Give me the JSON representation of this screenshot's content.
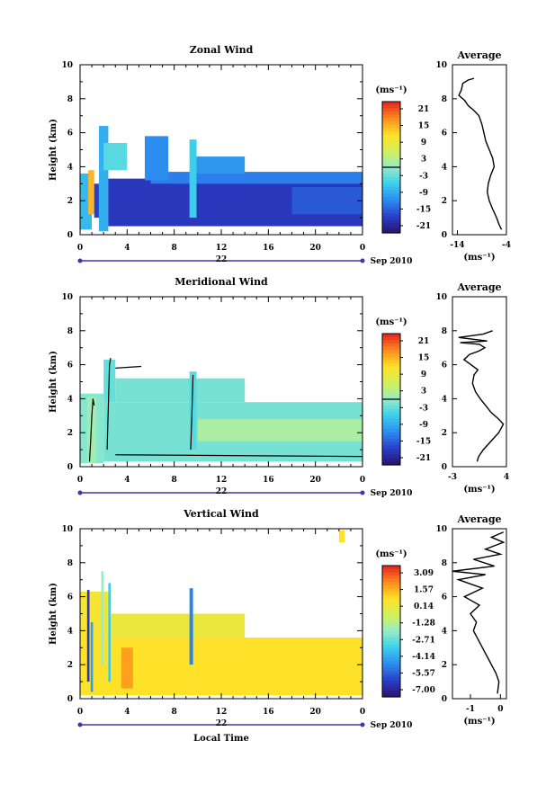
{
  "chart_data": [
    {
      "type": "heatmap",
      "title": "Zonal Wind",
      "ylabel": "Height (km)",
      "xlabel": "",
      "ylim": [
        0,
        10
      ],
      "xlim": [
        0,
        24
      ],
      "y_ticks": [
        "0",
        "2",
        "4",
        "6",
        "8",
        "10"
      ],
      "x_ticks": [
        "0",
        "4",
        "8",
        "12",
        "16",
        "20",
        "0"
      ],
      "date_day": "22",
      "date_label": "Sep 2010",
      "colorbar": {
        "unit": "(ms⁻¹)",
        "labels": [
          "21",
          "15",
          "9",
          "3",
          "-3",
          "-9",
          "-15",
          "-21"
        ],
        "vmin": -24,
        "vmax": 24,
        "zero_line": 0
      },
      "cells": [
        {
          "x0": 0.0,
          "x1": 1.0,
          "y0": 0.3,
          "y1": 3.6,
          "v": -8
        },
        {
          "x0": 0.7,
          "x1": 1.2,
          "y0": 1.2,
          "y1": 3.8,
          "v": 15
        },
        {
          "x0": 1.2,
          "x1": 1.6,
          "y0": 1.0,
          "y1": 3.0,
          "v": -18
        },
        {
          "x0": 1.6,
          "x1": 2.4,
          "y0": 0.2,
          "y1": 6.4,
          "v": -9
        },
        {
          "x0": 2.0,
          "x1": 4.0,
          "y0": 3.8,
          "y1": 5.4,
          "v": -4
        },
        {
          "x0": 2.4,
          "x1": 24.0,
          "y0": 0.5,
          "y1": 3.3,
          "v": -19
        },
        {
          "x0": 6.0,
          "x1": 24.0,
          "y0": 3.0,
          "y1": 3.7,
          "v": -13
        },
        {
          "x0": 9.3,
          "x1": 9.9,
          "y0": 1.0,
          "y1": 5.6,
          "v": -6
        },
        {
          "x0": 9.9,
          "x1": 14.0,
          "y0": 3.6,
          "y1": 4.6,
          "v": -11
        },
        {
          "x0": 5.5,
          "x1": 7.5,
          "y0": 3.2,
          "y1": 5.8,
          "v": -12
        },
        {
          "x0": 18.0,
          "x1": 24.0,
          "y0": 1.2,
          "y1": 2.8,
          "v": -16
        }
      ],
      "contours": [],
      "profile": {
        "title": "Average",
        "xlabel": "(ms⁻¹)",
        "xlim": [
          -15,
          -4
        ],
        "x_ticks": [
          "-14",
          "-4"
        ],
        "y_ticks": [
          "0",
          "2",
          "4",
          "6",
          "8",
          "10"
        ],
        "x": [
          -5.0,
          -5.5,
          -6.0,
          -6.8,
          -7.5,
          -7.9,
          -7.7,
          -7.2,
          -6.5,
          -6.8,
          -7.5,
          -8.2,
          -8.6,
          -9.0,
          -9.6,
          -10.6,
          -11.8,
          -12.5,
          -13.7,
          -13.2,
          -12.9,
          -11.8,
          -10.6
        ],
        "y": [
          0.3,
          0.6,
          1.0,
          1.5,
          2.0,
          2.5,
          3.0,
          3.5,
          4.0,
          4.5,
          5.0,
          5.5,
          6.0,
          6.5,
          7.0,
          7.3,
          7.6,
          7.9,
          8.2,
          8.5,
          8.9,
          9.1,
          9.2
        ]
      }
    },
    {
      "type": "heatmap",
      "title": "Meridional Wind",
      "ylabel": "Height (km)",
      "xlabel": "",
      "ylim": [
        0,
        10
      ],
      "xlim": [
        0,
        24
      ],
      "y_ticks": [
        "0",
        "2",
        "4",
        "6",
        "8",
        "10"
      ],
      "x_ticks": [
        "0",
        "4",
        "8",
        "12",
        "16",
        "20",
        "0"
      ],
      "date_day": "22",
      "date_label": "Sep 2010",
      "colorbar": {
        "unit": "(ms⁻¹)",
        "labels": [
          "21",
          "15",
          "9",
          "3",
          "-3",
          "-9",
          "-15",
          "-21"
        ],
        "vmin": -24,
        "vmax": 24,
        "zero_line": 0
      },
      "cells": [
        {
          "x0": 0.0,
          "x1": 2.0,
          "y0": 0.2,
          "y1": 4.3,
          "v": -1
        },
        {
          "x0": 0.6,
          "x1": 1.4,
          "y0": 0.2,
          "y1": 4.1,
          "v": 1
        },
        {
          "x0": 2.0,
          "x1": 24.0,
          "y0": 0.3,
          "y1": 3.8,
          "v": -2
        },
        {
          "x0": 2.0,
          "x1": 3.0,
          "y0": 3.8,
          "y1": 6.3,
          "v": -3
        },
        {
          "x0": 3.0,
          "x1": 14.0,
          "y0": 3.8,
          "y1": 5.2,
          "v": -2
        },
        {
          "x0": 9.3,
          "x1": 9.9,
          "y0": 1.0,
          "y1": 5.6,
          "v": -4
        },
        {
          "x0": 10.0,
          "x1": 24.0,
          "y0": 1.5,
          "y1": 2.8,
          "v": 2
        }
      ],
      "contours": [
        {
          "x": [
            0.8,
            0.9,
            1.0,
            1.1,
            1.2
          ],
          "y": [
            0.3,
            1.5,
            3.0,
            4.0,
            3.6
          ]
        },
        {
          "x": [
            2.3,
            2.4,
            2.5,
            2.6
          ],
          "y": [
            1.0,
            3.5,
            6.0,
            6.4
          ]
        },
        {
          "x": [
            9.4,
            9.5,
            9.6
          ],
          "y": [
            1.0,
            3.0,
            5.4
          ]
        },
        {
          "x": [
            3.0,
            5.2
          ],
          "y": [
            5.8,
            5.9
          ]
        },
        {
          "x": [
            3.0,
            24.0
          ],
          "y": [
            0.7,
            0.6
          ]
        }
      ],
      "profile": {
        "title": "Average",
        "xlabel": "(ms⁻¹)",
        "xlim": [
          -3,
          4
        ],
        "x_ticks": [
          "-3",
          "4"
        ],
        "y_ticks": [
          "0",
          "2",
          "4",
          "6",
          "8",
          "10"
        ],
        "x": [
          0.2,
          0.4,
          1.0,
          2.0,
          3.0,
          3.6,
          3.0,
          2.0,
          1.3,
          0.6,
          0.0,
          -0.4,
          -0.2,
          0.3,
          -0.6,
          -1.5,
          -0.8,
          0.4,
          1.2,
          0.5,
          -2.0,
          1.5,
          -2.2,
          1.0,
          2.2
        ],
        "y": [
          0.3,
          0.6,
          1.0,
          1.5,
          2.0,
          2.5,
          2.8,
          3.2,
          3.6,
          4.0,
          4.4,
          4.9,
          5.4,
          5.7,
          6.0,
          6.3,
          6.6,
          6.8,
          7.0,
          7.2,
          7.3,
          7.4,
          7.6,
          7.8,
          8.0
        ]
      }
    },
    {
      "type": "heatmap",
      "title": "Vertical Wind",
      "ylabel": "Height (km)",
      "xlabel": "Local Time",
      "ylim": [
        0,
        10
      ],
      "xlim": [
        0,
        24
      ],
      "y_ticks": [
        "0",
        "2",
        "4",
        "6",
        "8",
        "10"
      ],
      "x_ticks": [
        "0",
        "4",
        "8",
        "12",
        "16",
        "20",
        "0"
      ],
      "date_day": "22",
      "date_label": "Sep 2010",
      "colorbar": {
        "unit": "(ms⁻¹)",
        "labels": [
          "3.09",
          "1.57",
          "0.14",
          "-1.28",
          "-2.71",
          "-4.14",
          "-5.57",
          "-7.00"
        ],
        "vmin": -7.7,
        "vmax": 3.8,
        "zero_line": null
      },
      "cells": [
        {
          "x0": 0.0,
          "x1": 24.0,
          "y0": 0.2,
          "y1": 3.6,
          "v": 0.9
        },
        {
          "x0": 0.0,
          "x1": 2.5,
          "y0": 3.6,
          "y1": 6.3,
          "v": 0.6
        },
        {
          "x0": 2.5,
          "x1": 14.0,
          "y0": 3.6,
          "y1": 5.0,
          "v": 0.3
        },
        {
          "x0": 0.6,
          "x1": 0.8,
          "y0": 1.0,
          "y1": 6.4,
          "v": -6.5
        },
        {
          "x0": 0.9,
          "x1": 1.1,
          "y0": 0.4,
          "y1": 4.5,
          "v": -4.5
        },
        {
          "x0": 1.8,
          "x1": 2.0,
          "y0": 2.0,
          "y1": 7.5,
          "v": -1.8
        },
        {
          "x0": 2.4,
          "x1": 2.6,
          "y0": 1.0,
          "y1": 6.8,
          "v": -3.5
        },
        {
          "x0": 9.3,
          "x1": 9.6,
          "y0": 2.0,
          "y1": 6.5,
          "v": -5.0
        },
        {
          "x0": 3.5,
          "x1": 4.5,
          "y0": 0.6,
          "y1": 3.0,
          "v": 2.0
        },
        {
          "x0": 22.0,
          "x1": 22.5,
          "y0": 9.2,
          "y1": 9.9,
          "v": 0.8
        }
      ],
      "contours": [],
      "profile": {
        "title": "Average",
        "xlabel": "(ms⁻¹)",
        "xlim": [
          -1.6,
          0.2
        ],
        "x_ticks": [
          "-1",
          "0"
        ],
        "y_ticks": [
          "0",
          "2",
          "4",
          "6",
          "8",
          "10"
        ],
        "x": [
          -0.1,
          -0.05,
          -0.15,
          -0.3,
          -0.45,
          -0.6,
          -0.75,
          -0.9,
          -0.8,
          -1.0,
          -0.7,
          -1.2,
          -0.6,
          -1.4,
          -0.5,
          -1.6,
          -0.2,
          -0.9,
          0.0,
          -0.5,
          0.1,
          -0.3,
          0.1
        ],
        "y": [
          0.3,
          1.0,
          1.5,
          2.0,
          2.5,
          3.0,
          3.5,
          4.0,
          4.5,
          5.0,
          5.5,
          6.0,
          6.5,
          7.0,
          7.3,
          7.5,
          7.8,
          8.2,
          8.5,
          8.8,
          9.2,
          9.5,
          9.8
        ]
      }
    }
  ]
}
